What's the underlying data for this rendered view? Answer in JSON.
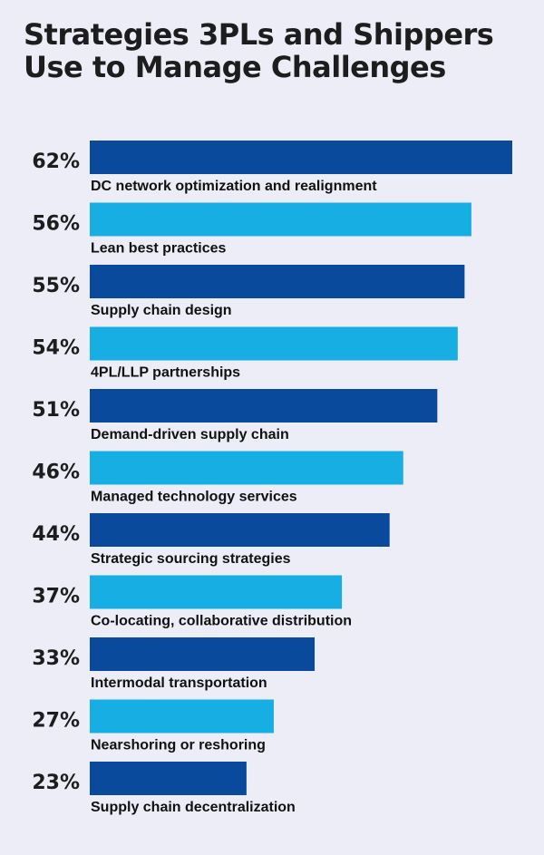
{
  "chart_data": {
    "type": "bar",
    "orientation": "horizontal",
    "title": "Strategies 3PLs and Shippers Use to Manage Challenges",
    "categories": [
      "DC network optimization and realignment",
      "Lean best practices",
      "Supply chain design",
      "4PL/LLP partnerships",
      "Demand-driven supply chain",
      "Managed technology services",
      "Strategic sourcing strategies",
      "Co-locating, collaborative distribution",
      "Intermodal transportation",
      "Nearshoring or reshoring",
      "Supply chain decentralization"
    ],
    "values": [
      62,
      56,
      55,
      54,
      51,
      46,
      44,
      37,
      33,
      27,
      23
    ],
    "value_labels": [
      "62%",
      "56%",
      "55%",
      "54%",
      "51%",
      "46%",
      "44%",
      "37%",
      "33%",
      "27%",
      "23%"
    ],
    "unit": "%",
    "bar_colors": [
      "#0a4a9c",
      "#17aee3"
    ],
    "xlim": [
      0,
      62
    ]
  }
}
